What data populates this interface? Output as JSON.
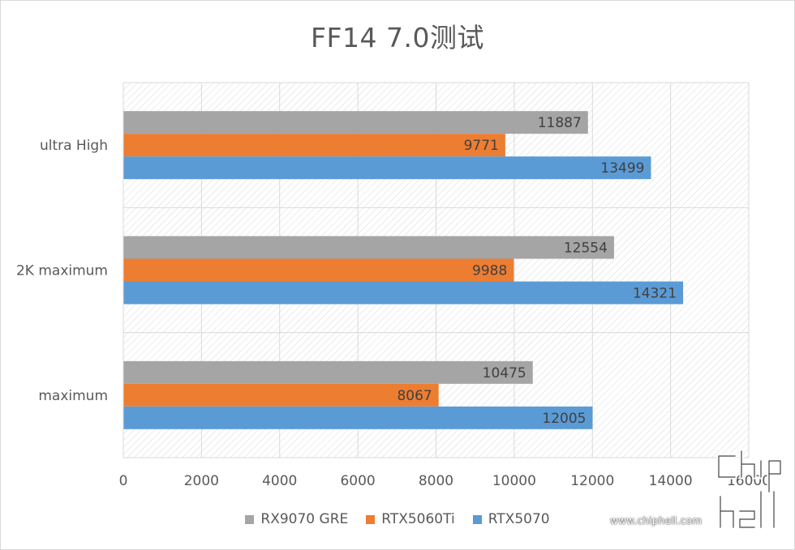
{
  "chart_data": {
    "type": "bar",
    "orientation": "horizontal",
    "title": "FF14 7.0测试",
    "categories": [
      "ultra High",
      "2K maximum",
      "maximum"
    ],
    "series": [
      {
        "name": "RX9070 GRE",
        "color": "#a5a5a5",
        "values": [
          11887,
          12554,
          10475
        ]
      },
      {
        "name": "RTX5060Ti",
        "color": "#ed7d31",
        "values": [
          9771,
          9988,
          8067
        ]
      },
      {
        "name": "RTX5070",
        "color": "#5b9bd5",
        "values": [
          13499,
          14321,
          12005
        ]
      }
    ],
    "xlim": [
      0,
      16000
    ],
    "xticks": [
      0,
      2000,
      4000,
      6000,
      8000,
      10000,
      12000,
      14000,
      16000
    ],
    "grid": true,
    "legend_position": "bottom"
  },
  "watermark": {
    "text": "www.chiphell.com",
    "logo_text": "chip hell"
  }
}
